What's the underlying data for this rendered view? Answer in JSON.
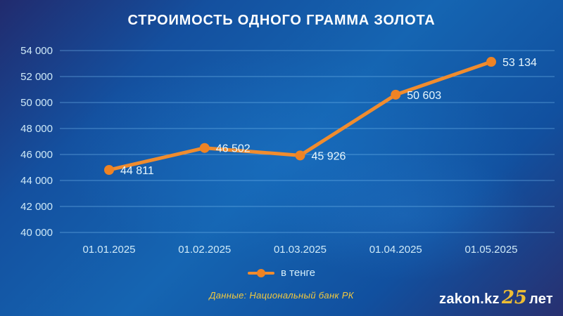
{
  "title": "СТРОИМОСТЬ ОДНОГО ГРАММА ЗОЛОТА",
  "chart_data": {
    "type": "line",
    "x": [
      "01.01.2025",
      "01.02.2025",
      "01.03.2025",
      "01.04.2025",
      "01.05.2025"
    ],
    "series": [
      {
        "name": "в тенге",
        "values": [
          44811,
          46502,
          45926,
          50603,
          53134
        ]
      }
    ],
    "data_labels": [
      "44 811",
      "46 502",
      "45 926",
      "50 603",
      "53 134"
    ],
    "title": "СТРОИМОСТЬ ОДНОГО ГРАММА ЗОЛОТА",
    "xlabel": "",
    "ylabel": "",
    "ylim": [
      40000,
      54000
    ],
    "yticks": [
      40000,
      42000,
      44000,
      46000,
      48000,
      50000,
      52000,
      54000
    ],
    "ytick_labels": [
      "40 000",
      "42 000",
      "44 000",
      "46 000",
      "48 000",
      "50 000",
      "52 000",
      "54 000"
    ],
    "grid": true,
    "legend_position": "bottom",
    "line_color": "#f08c2e",
    "marker_color": "#ee8324",
    "gridline_color": "rgba(120,190,240,0.55)",
    "axis_label_color": "#cfeaf8",
    "data_label_color": "#e8f7fd"
  },
  "legend": {
    "label": "в тенге"
  },
  "source": "Данные: Национальный банк РК",
  "logo": {
    "prefix": "zakon.kz",
    "number": "25",
    "suffix": "лет"
  }
}
